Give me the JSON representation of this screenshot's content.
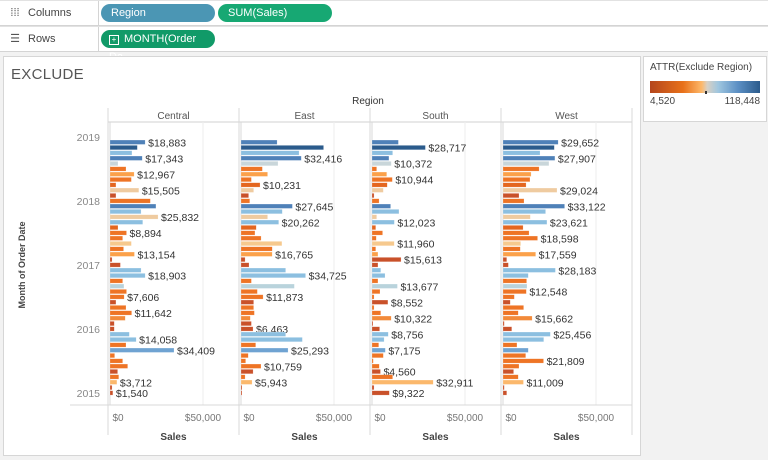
{
  "shelves": {
    "columns": {
      "label": "Columns",
      "icon": "columns-icon",
      "pills": [
        {
          "text": "Region",
          "color": "#4b96b4"
        },
        {
          "text": "SUM(Sales)",
          "color": "#17a873"
        }
      ]
    },
    "rows": {
      "label": "Rows",
      "icon": "rows-icon",
      "pills": [
        {
          "text": "MONTH(Order Da..",
          "color": "#119a68",
          "icon": "expand-plus-icon"
        }
      ]
    }
  },
  "sheet": {
    "title": "EXCLUDE"
  },
  "legend": {
    "title": "ATTR(Exclude Region)",
    "min": "4,520",
    "max": "118,448"
  },
  "chart_data": {
    "type": "bar",
    "orientation": "horizontal",
    "column_header": "Region",
    "y_axis_label": "Month of Order Date",
    "x_axis_label": "Sales",
    "x_ticks": [
      "$0",
      "$50,000"
    ],
    "xlim": [
      0,
      68000
    ],
    "y_tick_labels": [
      "2019",
      "2018",
      "2017",
      "2016",
      "2015"
    ],
    "months_order": "descending from Dec 2018 (top) to Jan 2015 (bottom)",
    "month_colors": [
      "#4f81b8",
      "#2b5b8c",
      "#8cbfe0",
      "#4f81b8",
      "#c9d6da",
      "#ee7425",
      "#fba14a",
      "#ee7425",
      "#e4661f",
      "#efcba0",
      "#c9512a",
      "#ee7425",
      "#4f81b8",
      "#8cbfe0",
      "#efcba0",
      "#8cbfe0",
      "#e4661f",
      "#ee7425",
      "#ee7425",
      "#f6c98e",
      "#ee7425",
      "#fba14a",
      "#c9512a",
      "#c9512a",
      "#8cbfe0",
      "#8cbfe0",
      "#ee7425",
      "#b9d3dc",
      "#ee7425",
      "#ee7425",
      "#c9512a",
      "#ee7425",
      "#ee7425",
      "#f28a3a",
      "#c9512a",
      "#c9512a",
      "#8cbfe0",
      "#8cbfe0",
      "#ee7425",
      "#6fa3d2",
      "#ee7425",
      "#ee7425",
      "#ee7425",
      "#c9512a",
      "#ee7425",
      "#fbb86c",
      "#c9512a",
      "#c9512a"
    ],
    "series": [
      {
        "name": "Central",
        "values": [
          18883,
          14700,
          11800,
          17343,
          4300,
          8600,
          12967,
          11500,
          3200,
          15505,
          3200,
          21700,
          24700,
          16700,
          25832,
          17600,
          4300,
          8894,
          6800,
          11500,
          7300,
          13154,
          1100,
          5600,
          16700,
          18903,
          6800,
          7500,
          8900,
          7606,
          3200,
          8600,
          11642,
          8200,
          2300,
          2300,
          10400,
          14058,
          8600,
          34409,
          2500,
          6800,
          9500,
          4100,
          4700,
          3712,
          1100,
          1540
        ],
        "labeled": [
          0,
          3,
          6,
          9,
          14,
          17,
          21,
          25,
          29,
          32,
          37,
          39,
          45,
          47
        ]
      },
      {
        "name": "East",
        "values": [
          19400,
          44400,
          31200,
          32416,
          19900,
          11500,
          14300,
          5600,
          10231,
          6800,
          4100,
          4700,
          27645,
          22200,
          14300,
          20262,
          8200,
          7500,
          10800,
          22000,
          16800,
          16765,
          2200,
          4300,
          24000,
          34725,
          5600,
          28700,
          8800,
          11873,
          6800,
          6800,
          7200,
          5000,
          5600,
          6463,
          24000,
          33000,
          7900,
          25293,
          3900,
          2500,
          10759,
          6500,
          2200,
          5943,
          400,
          300
        ],
        "labeled": [
          3,
          8,
          12,
          15,
          21,
          25,
          29,
          35,
          39,
          42,
          45
        ]
      },
      {
        "name": "South",
        "values": [
          14200,
          28717,
          11100,
          9100,
          10372,
          2500,
          7900,
          10944,
          8200,
          6100,
          1100,
          3800,
          10000,
          14500,
          2500,
          12023,
          2000,
          5700,
          2300,
          11960,
          2000,
          3200,
          15613,
          3200,
          4700,
          7000,
          3200,
          13677,
          4300,
          1100,
          8552,
          1100,
          4700,
          10322,
          400,
          4100,
          8756,
          6500,
          3600,
          7175,
          6100,
          700,
          3900,
          4560,
          11100,
          32911,
          1100,
          9322
        ],
        "labeled": [
          1,
          4,
          7,
          15,
          19,
          22,
          27,
          30,
          33,
          36,
          39,
          43,
          45,
          47
        ]
      },
      {
        "name": "West",
        "values": [
          29652,
          27600,
          19900,
          27907,
          24700,
          19400,
          15100,
          14500,
          12400,
          29024,
          8600,
          11300,
          33122,
          22900,
          14700,
          23621,
          10800,
          14000,
          18598,
          9500,
          9300,
          17559,
          2000,
          2900,
          28183,
          13600,
          12700,
          12900,
          12548,
          6100,
          3900,
          11100,
          8200,
          15662,
          700,
          4700,
          25456,
          21900,
          7500,
          13600,
          12200,
          21809,
          8600,
          5700,
          8200,
          11009,
          700,
          2000
        ],
        "labeled": [
          0,
          3,
          9,
          12,
          15,
          18,
          21,
          24,
          28,
          33,
          36,
          41,
          45
        ]
      }
    ]
  }
}
